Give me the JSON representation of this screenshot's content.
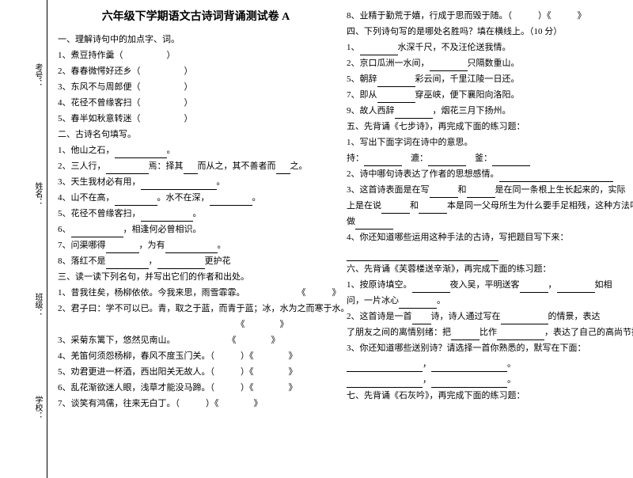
{
  "sidebar": {
    "labels": [
      "考号：",
      "姓名：",
      "班级：",
      "学校："
    ]
  },
  "title": "六年级下学期语文古诗词背诵测试卷 A",
  "leftCol": [
    "一、理解诗句中的加点字、词。",
    "1、煮豆持作羹（　　　　　）",
    "2、春春微愕好还乡（　　　　　）",
    "3、东风不与周郎便（　　　　　）",
    "4、花径不曾缘客扫（　　　　　）",
    "5、春半如秋意转迷（　　　　　）",
    "二、古诗名句填写。",
    "1、他山之石，___________。",
    "2、三人行，_________焉：择其___而从之，其不善者而___之。",
    "3、天生我材必有用，________________。",
    "4、山不在高，_________。水不在深，_________。",
    "5、花径不曾缘客扫，___________。",
    "6、___________，相逢何必曾相识。",
    "7、问渠哪得_______，为有___________。",
    "8、落红不是_________，__________更护花",
    "三、读一读下列名句，并写出它们的作者和出处。",
    "1、昔我往矣，杨柳依依。今我来思，雨雪霏霏。　　　　　　　《　　　》",
    "2、君子曰：学不可以已。青，取之于蓝，而青于蓝；冰，水为之而寒于水。",
    "　　　　　　　　　　　　　　　　　　　　　《　　　　》",
    "3、采菊东篱下，悠然见南山。　　　　　　　《　　　　》",
    "4、羌笛何须怨杨柳，春风不度玉门关。（　　　）《　　　　》",
    "5、劝君更进一杯酒，西出阳关无故人。（　　　）《　　　　》",
    "6、乱花渐欲迷人眼，浅草才能没马蹄。（　　　）《　　　　》",
    "7、谈笑有鸿儒，往来无白丁。（　　　）《　　　　》"
  ],
  "rightCol": [
    "8、业精于勤荒于嬉，行成于思而毁于随。（　　　）《　　　》",
    "四、下列诗句写的是哪处名胜吗？填在横线上。（10 分）",
    "1、________水深千尺，不及汪伦送我情。",
    "2、京口瓜洲一水间，________只隔数重山。",
    "5、朝辞________彩云间，千里江陵一日还。",
    "7、即从________穿巫峡，便下襄阳向洛阳。",
    "9、故人西辞________，烟花三月下扬州。",
    "五、先背诵《七步诗》，再完成下面的练习题：",
    "1、写出下面字词在诗中的意思。",
    "持：________　漉：________　釜：________",
    "2、诗中哪句诗表达了作者的思想感情。________________________",
    "3、这首诗表面是在写______和______是在同一条根上生长起来的，实际",
    "上是在说______和______本是同一父母所生为什么要手足相残，这种方法叫",
    "做________",
    "4、你还知道哪些运用这种手法的古诗，写把题目写下来：",
    "________________________________",
    "六、先背诵《芙蓉楼送辛渐》，再完成下面的练习题：",
    "1、按原诗填空。________夜入吴，平明送客______，________如相",
    "问，一片冰心________。",
    "2、这首诗是一首____诗，诗人通过写在__________的情景，表达",
    "了朋友之间的离情别绪：把______比作__________，表达了自己的高尚节操。",
    "",
    "3、你还知道哪些送别诗？请选择一首你熟悉的，默写在下面：",
    "________________，________________。",
    "________________，________________。",
    "七、先背诵《石灰吟》，再完成下面的练习题："
  ]
}
